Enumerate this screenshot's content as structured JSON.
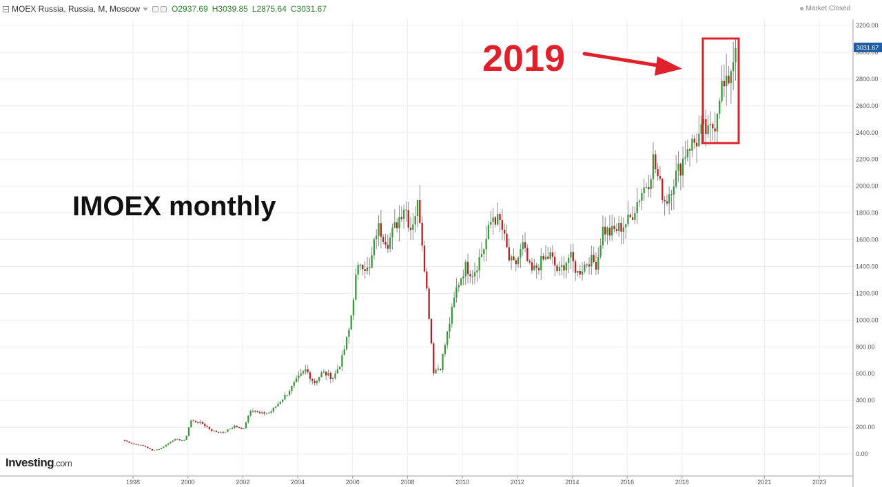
{
  "header": {
    "symbol_label": "MOEX Russia, Russia, M, Moscow",
    "open": "O2937.69",
    "high": "H3039.85",
    "low": "L2875.64",
    "close": "C3031.67",
    "market_status": "Market Closed"
  },
  "logo": {
    "main": "Investing",
    "suffix": ".com"
  },
  "annotations": {
    "title": "IMOEX monthly",
    "year_label": "2019",
    "arrow_color": "#e0202a",
    "box_color": "#e0202a"
  },
  "colors": {
    "up": "#3a9a3a",
    "down": "#b52020",
    "wick": "#8a8a8a",
    "grid": "#ececec",
    "price_label_bg": "#1f5fa8"
  },
  "chart_data": {
    "type": "candlestick",
    "title": "",
    "xlabel": "",
    "ylabel": "",
    "ylim": [
      -50,
      3250
    ],
    "xlim": [
      1997.3,
      2024.3
    ],
    "grid": true,
    "y_ticks": [
      "3200.00",
      "3000.00",
      "2800.00",
      "2600.00",
      "2400.00",
      "2200.00",
      "2000.00",
      "1800.00",
      "1600.00",
      "1400.00",
      "1200.00",
      "1000.00",
      "800.00",
      "600.00",
      "400.00",
      "200.00",
      "0.00"
    ],
    "x_ticks": [
      "1998",
      "2000",
      "2002",
      "2004",
      "2006",
      "2008",
      "2010",
      "2012",
      "2014",
      "2016",
      "2018",
      "2021",
      "2023"
    ],
    "x_tick_positions": [
      1998,
      2000,
      2002,
      2004,
      2006,
      2008,
      2010,
      2012,
      2014,
      2016,
      2018,
      2021,
      2023
    ],
    "last_price": "3031.67",
    "series": [
      {
        "anchors": [
          [
            1997.7,
            100
          ],
          [
            1998.0,
            75
          ],
          [
            1998.4,
            60
          ],
          [
            1998.7,
            25
          ],
          [
            1999.0,
            40
          ],
          [
            1999.5,
            110
          ],
          [
            1999.9,
            100
          ],
          [
            2000.1,
            250
          ],
          [
            2000.5,
            230
          ],
          [
            2000.9,
            170
          ],
          [
            2001.3,
            160
          ],
          [
            2001.7,
            210
          ],
          [
            2002.0,
            180
          ],
          [
            2002.3,
            340
          ],
          [
            2002.6,
            300
          ],
          [
            2003.0,
            310
          ],
          [
            2003.3,
            380
          ],
          [
            2003.6,
            450
          ],
          [
            2004.0,
            560
          ],
          [
            2004.3,
            630
          ],
          [
            2004.6,
            530
          ],
          [
            2004.9,
            610
          ],
          [
            2005.3,
            570
          ],
          [
            2005.6,
            700
          ],
          [
            2005.9,
            950
          ],
          [
            2006.1,
            1300
          ],
          [
            2006.3,
            1450
          ],
          [
            2006.6,
            1350
          ],
          [
            2006.9,
            1700
          ],
          [
            2007.3,
            1580
          ],
          [
            2007.6,
            1720
          ],
          [
            2007.9,
            1870
          ],
          [
            2008.1,
            1680
          ],
          [
            2008.4,
            1880
          ],
          [
            2008.6,
            1450
          ],
          [
            2008.8,
            1000
          ],
          [
            2008.95,
            620
          ],
          [
            2009.2,
            650
          ],
          [
            2009.5,
            950
          ],
          [
            2009.8,
            1250
          ],
          [
            2010.1,
            1400
          ],
          [
            2010.4,
            1350
          ],
          [
            2010.8,
            1550
          ],
          [
            2011.1,
            1780
          ],
          [
            2011.4,
            1720
          ],
          [
            2011.7,
            1450
          ],
          [
            2011.9,
            1400
          ],
          [
            2012.2,
            1550
          ],
          [
            2012.5,
            1350
          ],
          [
            2012.9,
            1440
          ],
          [
            2013.2,
            1480
          ],
          [
            2013.5,
            1350
          ],
          [
            2013.9,
            1480
          ],
          [
            2014.2,
            1350
          ],
          [
            2014.6,
            1450
          ],
          [
            2014.9,
            1420
          ],
          [
            2015.1,
            1680
          ],
          [
            2015.4,
            1650
          ],
          [
            2015.8,
            1700
          ],
          [
            2016.1,
            1750
          ],
          [
            2016.5,
            1950
          ],
          [
            2016.8,
            2050
          ],
          [
            2016.95,
            2200
          ],
          [
            2017.2,
            2000
          ],
          [
            2017.4,
            1880
          ],
          [
            2017.7,
            2050
          ],
          [
            2017.95,
            2150
          ],
          [
            2018.2,
            2300
          ],
          [
            2018.5,
            2330
          ],
          [
            2018.8,
            2430
          ],
          [
            2018.95,
            2380
          ],
          [
            2019.2,
            2480
          ],
          [
            2019.4,
            2750
          ],
          [
            2019.6,
            2720
          ],
          [
            2019.85,
            2950
          ],
          [
            2019.95,
            3031.67
          ]
        ]
      }
    ]
  }
}
